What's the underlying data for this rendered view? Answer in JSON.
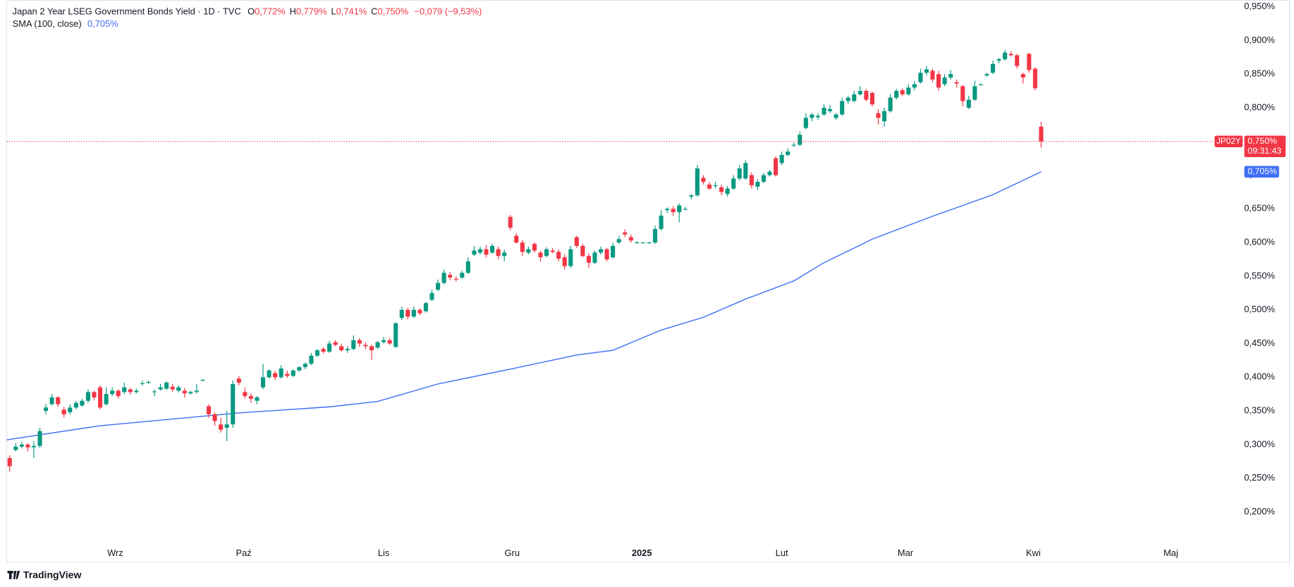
{
  "chart_data": {
    "type": "candlestick",
    "title": "Japan 2 Year LSEG Government Bonds Yield · 1D · TVC",
    "ohlc_labels": [
      {
        "key": "O",
        "value": "0,772%"
      },
      {
        "key": "H",
        "value": "0,779%"
      },
      {
        "key": "L",
        "value": "0,741%"
      },
      {
        "key": "C",
        "value": "0,750%"
      }
    ],
    "change": "−0,079 (−9,53%)",
    "symbol": "JP02Y",
    "last_label": "0,750%",
    "countdown": "09:31:43",
    "brand": "TradingView",
    "up_color": "#089981",
    "down_color": "#f23645",
    "indicator": {
      "name": "SMA (100, close)",
      "value_label": "0,705%",
      "color": "#3d6ff5",
      "x": [
        -0.5,
        15,
        38,
        53,
        61,
        71,
        83,
        94,
        100,
        108,
        115,
        122,
        130,
        135,
        143,
        153,
        163,
        171
      ],
      "values": [
        0.307,
        0.328,
        0.347,
        0.356,
        0.364,
        0.39,
        0.412,
        0.433,
        0.44,
        0.47,
        0.489,
        0.516,
        0.543,
        0.57,
        0.605,
        0.639,
        0.671,
        0.705
      ]
    },
    "xlim": [
      -0.5,
      204
    ],
    "xticks": [
      {
        "value": 17.5,
        "label": "Wrz"
      },
      {
        "value": 38.8,
        "label": "Paź"
      },
      {
        "value": 62,
        "label": "Lis"
      },
      {
        "value": 83.3,
        "label": "Gru"
      },
      {
        "value": 104.8,
        "label": "2025"
      },
      {
        "value": 128,
        "label": "Lut"
      },
      {
        "value": 148.5,
        "label": "Mar"
      },
      {
        "value": 169.7,
        "label": "Kwi"
      },
      {
        "value": 192.5,
        "label": "Maj"
      }
    ],
    "ylim": [
      0.126,
      0.96
    ],
    "yticks": [
      {
        "value": 0.2,
        "label": "0,200%"
      },
      {
        "value": 0.25,
        "label": "0,250%"
      },
      {
        "value": 0.3,
        "label": "0,300%"
      },
      {
        "value": 0.35,
        "label": "0,350%"
      },
      {
        "value": 0.4,
        "label": "0,400%"
      },
      {
        "value": 0.45,
        "label": "0,450%"
      },
      {
        "value": 0.5,
        "label": "0,500%"
      },
      {
        "value": 0.55,
        "label": "0,550%"
      },
      {
        "value": 0.6,
        "label": "0,600%"
      },
      {
        "value": 0.65,
        "label": "0,650%"
      },
      {
        "value": 0.7,
        "label": "0,700%"
      },
      {
        "value": 0.75,
        "label": "0,750%"
      },
      {
        "value": 0.8,
        "label": "0,800%"
      },
      {
        "value": 0.85,
        "label": "0,850%"
      },
      {
        "value": 0.9,
        "label": "0,900%"
      },
      {
        "value": 0.95,
        "label": "0,950%"
      }
    ],
    "grid": false,
    "candles": [
      [
        0.28,
        0.284,
        0.26,
        0.268
      ],
      [
        0.292,
        0.302,
        0.29,
        0.297
      ],
      [
        0.297,
        0.304,
        0.294,
        0.3
      ],
      [
        0.3,
        0.302,
        0.29,
        0.296
      ],
      [
        0.296,
        0.305,
        0.28,
        0.298
      ],
      [
        0.298,
        0.325,
        0.295,
        0.32
      ],
      [
        0.35,
        0.36,
        0.345,
        0.355
      ],
      [
        0.36,
        0.375,
        0.358,
        0.37
      ],
      [
        0.37,
        0.372,
        0.356,
        0.36
      ],
      [
        0.352,
        0.356,
        0.34,
        0.345
      ],
      [
        0.348,
        0.36,
        0.345,
        0.355
      ],
      [
        0.355,
        0.365,
        0.352,
        0.362
      ],
      [
        0.358,
        0.368,
        0.356,
        0.365
      ],
      [
        0.365,
        0.382,
        0.362,
        0.378
      ],
      [
        0.378,
        0.38,
        0.366,
        0.37
      ],
      [
        0.385,
        0.388,
        0.352,
        0.355
      ],
      [
        0.36,
        0.385,
        0.358,
        0.375
      ],
      [
        0.375,
        0.385,
        0.372,
        0.38
      ],
      [
        0.38,
        0.382,
        0.368,
        0.372
      ],
      [
        0.378,
        0.392,
        0.375,
        0.385
      ],
      [
        0.382,
        0.384,
        0.374,
        0.378
      ],
      [
        0.378,
        0.383,
        0.376,
        0.38
      ],
      [
        0.39,
        0.395,
        0.388,
        0.391
      ],
      [
        0.392,
        0.395,
        0.39,
        0.393
      ],
      [
        0.378,
        0.382,
        0.372,
        0.379
      ],
      [
        0.382,
        0.39,
        0.38,
        0.385
      ],
      [
        0.383,
        0.394,
        0.381,
        0.392
      ],
      [
        0.386,
        0.39,
        0.378,
        0.382
      ],
      [
        0.38,
        0.388,
        0.378,
        0.385
      ],
      [
        0.38,
        0.384,
        0.37,
        0.376
      ],
      [
        0.376,
        0.38,
        0.374,
        0.378
      ],
      [
        0.378,
        0.39,
        0.376,
        0.38
      ],
      [
        0.395,
        0.397,
        0.394,
        0.396
      ],
      [
        0.357,
        0.36,
        0.34,
        0.345
      ],
      [
        0.345,
        0.348,
        0.328,
        0.335
      ],
      [
        0.33,
        0.34,
        0.318,
        0.322
      ],
      [
        0.325,
        0.35,
        0.305,
        0.33
      ],
      [
        0.33,
        0.395,
        0.325,
        0.39
      ],
      [
        0.398,
        0.402,
        0.388,
        0.392
      ],
      [
        0.378,
        0.385,
        0.368,
        0.372
      ],
      [
        0.372,
        0.376,
        0.362,
        0.368
      ],
      [
        0.365,
        0.372,
        0.36,
        0.37
      ],
      [
        0.385,
        0.42,
        0.382,
        0.4
      ],
      [
        0.4,
        0.412,
        0.398,
        0.41
      ],
      [
        0.406,
        0.41,
        0.396,
        0.4
      ],
      [
        0.4,
        0.418,
        0.398,
        0.413
      ],
      [
        0.405,
        0.41,
        0.399,
        0.402
      ],
      [
        0.402,
        0.412,
        0.4,
        0.41
      ],
      [
        0.41,
        0.416,
        0.408,
        0.415
      ],
      [
        0.415,
        0.422,
        0.412,
        0.42
      ],
      [
        0.42,
        0.436,
        0.418,
        0.432
      ],
      [
        0.432,
        0.442,
        0.43,
        0.44
      ],
      [
        0.442,
        0.445,
        0.435,
        0.438
      ],
      [
        0.438,
        0.454,
        0.436,
        0.45
      ],
      [
        0.452,
        0.455,
        0.446,
        0.448
      ],
      [
        0.446,
        0.45,
        0.438,
        0.44
      ],
      [
        0.44,
        0.446,
        0.436,
        0.442
      ],
      [
        0.442,
        0.462,
        0.44,
        0.455
      ],
      [
        0.455,
        0.458,
        0.445,
        0.45
      ],
      [
        0.448,
        0.452,
        0.442,
        0.446
      ],
      [
        0.446,
        0.448,
        0.426,
        0.44
      ],
      [
        0.444,
        0.454,
        0.442,
        0.452
      ],
      [
        0.452,
        0.46,
        0.45,
        0.455
      ],
      [
        0.455,
        0.458,
        0.448,
        0.45
      ],
      [
        0.445,
        0.482,
        0.444,
        0.48
      ],
      [
        0.488,
        0.505,
        0.485,
        0.5
      ],
      [
        0.5,
        0.503,
        0.486,
        0.49
      ],
      [
        0.49,
        0.505,
        0.488,
        0.5
      ],
      [
        0.5,
        0.502,
        0.492,
        0.495
      ],
      [
        0.498,
        0.512,
        0.496,
        0.51
      ],
      [
        0.515,
        0.53,
        0.513,
        0.525
      ],
      [
        0.53,
        0.545,
        0.528,
        0.54
      ],
      [
        0.54,
        0.56,
        0.538,
        0.555
      ],
      [
        0.552,
        0.556,
        0.544,
        0.548
      ],
      [
        0.546,
        0.55,
        0.542,
        0.545
      ],
      [
        0.548,
        0.558,
        0.546,
        0.555
      ],
      [
        0.555,
        0.578,
        0.553,
        0.572
      ],
      [
        0.582,
        0.595,
        0.58,
        0.588
      ],
      [
        0.585,
        0.594,
        0.582,
        0.59
      ],
      [
        0.59,
        0.596,
        0.578,
        0.582
      ],
      [
        0.585,
        0.598,
        0.583,
        0.595
      ],
      [
        0.59,
        0.594,
        0.575,
        0.58
      ],
      [
        0.58,
        0.59,
        0.572,
        0.585
      ],
      [
        0.638,
        0.641,
        0.618,
        0.622
      ],
      [
        0.61,
        0.614,
        0.598,
        0.6
      ],
      [
        0.6,
        0.604,
        0.58,
        0.586
      ],
      [
        0.585,
        0.594,
        0.582,
        0.59
      ],
      [
        0.598,
        0.6,
        0.585,
        0.588
      ],
      [
        0.585,
        0.588,
        0.572,
        0.578
      ],
      [
        0.58,
        0.593,
        0.578,
        0.59
      ],
      [
        0.588,
        0.592,
        0.584,
        0.586
      ],
      [
        0.586,
        0.59,
        0.572,
        0.576
      ],
      [
        0.578,
        0.582,
        0.56,
        0.565
      ],
      [
        0.565,
        0.595,
        0.562,
        0.59
      ],
      [
        0.608,
        0.61,
        0.592,
        0.595
      ],
      [
        0.595,
        0.598,
        0.578,
        0.58
      ],
      [
        0.58,
        0.584,
        0.562,
        0.57
      ],
      [
        0.57,
        0.588,
        0.568,
        0.585
      ],
      [
        0.585,
        0.594,
        0.582,
        0.59
      ],
      [
        0.59,
        0.592,
        0.572,
        0.575
      ],
      [
        0.578,
        0.6,
        0.576,
        0.595
      ],
      [
        0.6,
        0.61,
        0.598,
        0.605
      ],
      [
        0.615,
        0.62,
        0.608,
        0.612
      ],
      [
        0.608,
        0.612,
        0.6,
        0.603
      ],
      [
        0.6,
        0.602,
        0.599,
        0.6
      ],
      [
        0.6,
        0.601,
        0.599,
        0.6
      ],
      [
        0.6,
        0.601,
        0.599,
        0.6
      ],
      [
        0.6,
        0.625,
        0.598,
        0.62
      ],
      [
        0.62,
        0.648,
        0.618,
        0.64
      ],
      [
        0.648,
        0.652,
        0.644,
        0.65
      ],
      [
        0.65,
        0.654,
        0.64,
        0.645
      ],
      [
        0.645,
        0.658,
        0.63,
        0.655
      ],
      [
        0.65,
        0.653,
        0.648,
        0.65
      ],
      [
        0.668,
        0.672,
        0.664,
        0.67
      ],
      [
        0.67,
        0.715,
        0.668,
        0.71
      ],
      [
        0.696,
        0.7,
        0.686,
        0.69
      ],
      [
        0.686,
        0.69,
        0.678,
        0.68
      ],
      [
        0.684,
        0.69,
        0.68,
        0.685
      ],
      [
        0.682,
        0.686,
        0.67,
        0.675
      ],
      [
        0.672,
        0.684,
        0.668,
        0.68
      ],
      [
        0.68,
        0.7,
        0.678,
        0.695
      ],
      [
        0.695,
        0.715,
        0.692,
        0.71
      ],
      [
        0.695,
        0.722,
        0.693,
        0.718
      ],
      [
        0.7,
        0.704,
        0.68,
        0.685
      ],
      [
        0.683,
        0.694,
        0.678,
        0.69
      ],
      [
        0.69,
        0.703,
        0.688,
        0.7
      ],
      [
        0.7,
        0.708,
        0.698,
        0.705
      ],
      [
        0.725,
        0.728,
        0.698,
        0.7
      ],
      [
        0.718,
        0.735,
        0.715,
        0.73
      ],
      [
        0.73,
        0.74,
        0.728,
        0.735
      ],
      [
        0.744,
        0.748,
        0.742,
        0.745
      ],
      [
        0.745,
        0.765,
        0.743,
        0.76
      ],
      [
        0.77,
        0.792,
        0.768,
        0.785
      ],
      [
        0.785,
        0.792,
        0.78,
        0.79
      ],
      [
        0.786,
        0.792,
        0.782,
        0.788
      ],
      [
        0.79,
        0.805,
        0.788,
        0.8
      ],
      [
        0.795,
        0.804,
        0.792,
        0.798
      ],
      [
        0.785,
        0.792,
        0.782,
        0.79
      ],
      [
        0.79,
        0.815,
        0.788,
        0.81
      ],
      [
        0.81,
        0.818,
        0.806,
        0.815
      ],
      [
        0.81,
        0.825,
        0.808,
        0.82
      ],
      [
        0.82,
        0.832,
        0.818,
        0.825
      ],
      [
        0.825,
        0.828,
        0.81,
        0.812
      ],
      [
        0.822,
        0.824,
        0.802,
        0.805
      ],
      [
        0.792,
        0.798,
        0.775,
        0.785
      ],
      [
        0.78,
        0.8,
        0.772,
        0.795
      ],
      [
        0.795,
        0.82,
        0.793,
        0.815
      ],
      [
        0.815,
        0.828,
        0.812,
        0.825
      ],
      [
        0.826,
        0.829,
        0.818,
        0.82
      ],
      [
        0.82,
        0.835,
        0.818,
        0.83
      ],
      [
        0.83,
        0.84,
        0.826,
        0.835
      ],
      [
        0.838,
        0.858,
        0.836,
        0.852
      ],
      [
        0.852,
        0.862,
        0.848,
        0.857
      ],
      [
        0.855,
        0.858,
        0.838,
        0.842
      ],
      [
        0.85,
        0.855,
        0.825,
        0.83
      ],
      [
        0.835,
        0.85,
        0.832,
        0.845
      ],
      [
        0.845,
        0.856,
        0.842,
        0.85
      ],
      [
        0.838,
        0.842,
        0.83,
        0.836
      ],
      [
        0.832,
        0.834,
        0.802,
        0.81
      ],
      [
        0.8,
        0.818,
        0.798,
        0.812
      ],
      [
        0.812,
        0.84,
        0.81,
        0.832
      ],
      [
        0.834,
        0.836,
        0.833,
        0.835
      ],
      [
        0.848,
        0.852,
        0.846,
        0.85
      ],
      [
        0.852,
        0.87,
        0.85,
        0.865
      ],
      [
        0.87,
        0.874,
        0.866,
        0.872
      ],
      [
        0.872,
        0.886,
        0.87,
        0.882
      ],
      [
        0.88,
        0.884,
        0.876,
        0.878
      ],
      [
        0.878,
        0.88,
        0.858,
        0.862
      ],
      [
        0.85,
        0.852,
        0.836,
        0.845
      ],
      [
        0.88,
        0.882,
        0.852,
        0.856
      ],
      [
        0.858,
        0.86,
        0.826,
        0.829
      ],
      [
        0.772,
        0.779,
        0.741,
        0.75
      ]
    ]
  }
}
